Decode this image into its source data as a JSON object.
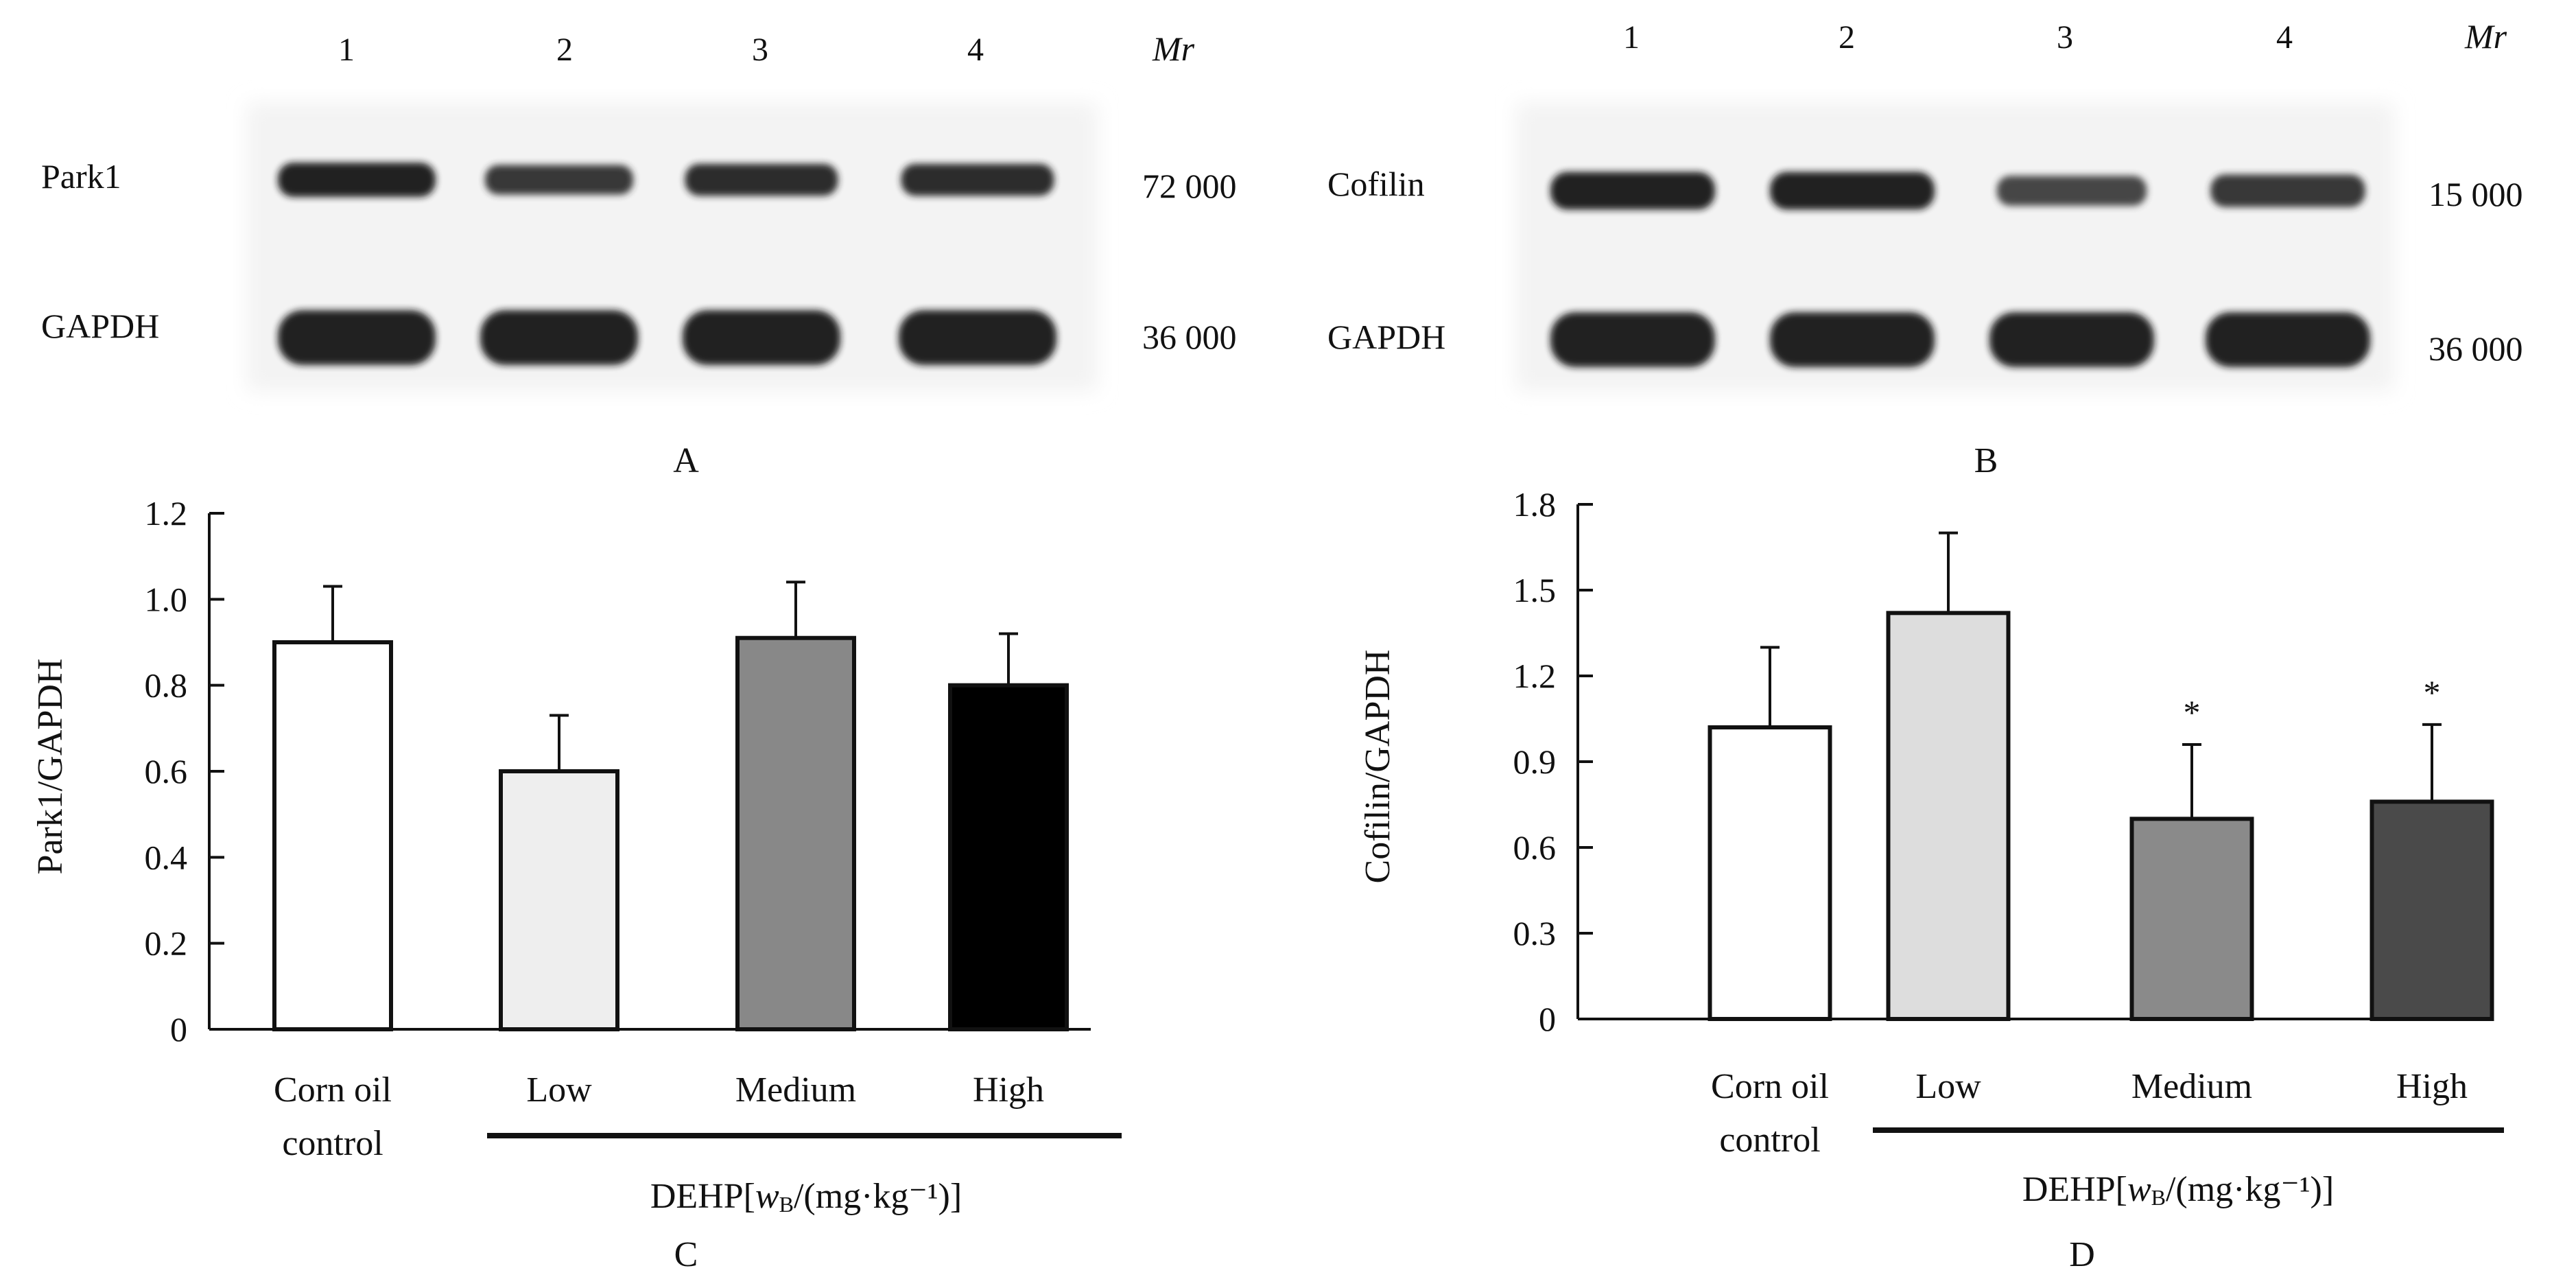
{
  "blots": {
    "A": {
      "panel_label": "A",
      "lanes": [
        "1",
        "2",
        "3",
        "4"
      ],
      "mr_header": "Mr",
      "rows": [
        {
          "protein": "Park1",
          "mr": "72 000",
          "intensity": [
            1.0,
            0.7,
            0.85,
            0.85
          ]
        },
        {
          "protein": "GAPDH",
          "mr": "36 000",
          "intensity": [
            1.0,
            1.0,
            1.0,
            1.0
          ]
        }
      ]
    },
    "B": {
      "panel_label": "B",
      "lanes": [
        "1",
        "2",
        "3",
        "4"
      ],
      "mr_header": "Mr",
      "rows": [
        {
          "protein": "Cofilin",
          "mr": "15 000",
          "intensity": [
            1.0,
            1.0,
            0.55,
            0.7
          ]
        },
        {
          "protein": "GAPDH",
          "mr": "36 000",
          "intensity": [
            1.0,
            1.0,
            1.0,
            1.0
          ]
        }
      ]
    }
  },
  "chart_data": [
    {
      "type": "bar",
      "panel_label": "C",
      "ylabel": "Park1/GAPDH",
      "ylim": [
        0,
        1.2
      ],
      "yticks": [
        0,
        0.2,
        0.4,
        0.6,
        0.8,
        1.0,
        1.2
      ],
      "ytick_labels": [
        "0",
        "0.2",
        "0.4",
        "0.6",
        "0.8",
        "1.0",
        "1.2"
      ],
      "categories": [
        "Corn oil control",
        "Low",
        "Medium",
        "High"
      ],
      "category_lines": [
        [
          "Corn oil",
          "control"
        ],
        [
          "Low"
        ],
        [
          "Medium"
        ],
        [
          "High"
        ]
      ],
      "values": [
        0.9,
        0.6,
        0.91,
        0.8
      ],
      "errors": [
        0.13,
        0.13,
        0.13,
        0.12
      ],
      "significance": [
        "",
        "",
        "",
        ""
      ],
      "fills": [
        "#ffffff",
        "#eeeeee",
        "#888888",
        "#000000"
      ],
      "group_label_prefix": "DEHP[",
      "group_label_italic": "w",
      "group_label_sub": "B",
      "group_label_unit": "/(mg·kg⁻¹)]",
      "grid": false
    },
    {
      "type": "bar",
      "panel_label": "D",
      "ylabel": "Cofilin/GAPDH",
      "ylim": [
        0,
        1.8
      ],
      "yticks": [
        0,
        0.3,
        0.6,
        0.9,
        1.2,
        1.5,
        1.8
      ],
      "ytick_labels": [
        "0",
        "0.3",
        "0.6",
        "0.9",
        "1.2",
        "1.5",
        "1.8"
      ],
      "categories": [
        "Corn oil control",
        "Low",
        "Medium",
        "High"
      ],
      "category_lines": [
        [
          "Corn oil",
          "control"
        ],
        [
          "Low"
        ],
        [
          "Medium"
        ],
        [
          "High"
        ]
      ],
      "values": [
        1.02,
        1.42,
        0.7,
        0.76
      ],
      "errors": [
        0.28,
        0.28,
        0.26,
        0.27
      ],
      "significance": [
        "",
        "",
        "*",
        "*"
      ],
      "fills": [
        "#ffffff",
        "#dddddd",
        "#8a8a8a",
        "#4a4a4a"
      ],
      "group_label_prefix": "DEHP[",
      "group_label_italic": "w",
      "group_label_sub": "B",
      "group_label_unit": "/(mg·kg⁻¹)]",
      "grid": false
    }
  ]
}
